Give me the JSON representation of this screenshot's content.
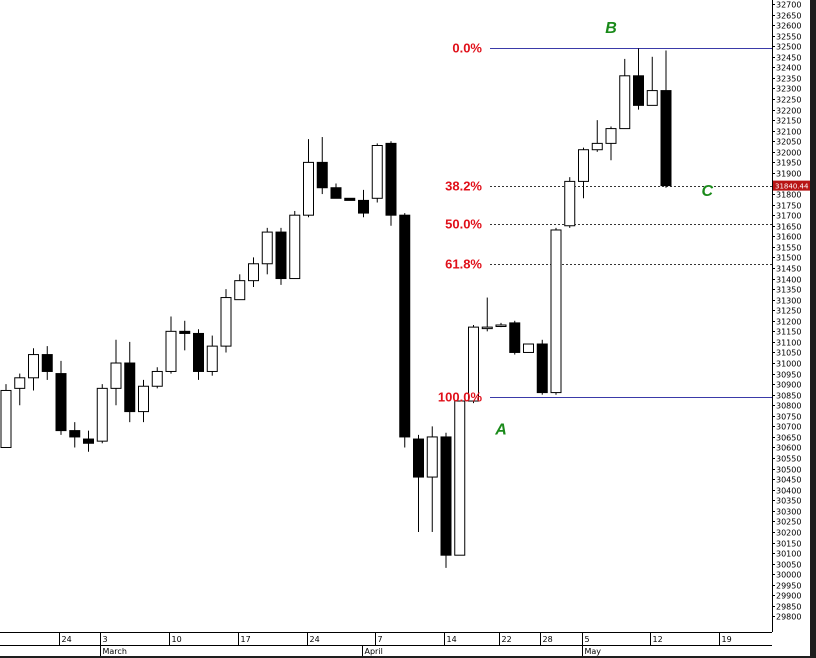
{
  "chart_data": {
    "type": "candlestick",
    "title": "",
    "xlabel": "",
    "ylabel": "",
    "ylim": [
      29750,
      32700
    ],
    "y_tick_step": 50,
    "grid": false,
    "colors": {
      "background": "#ffffff",
      "frame": "#1e1e1e",
      "up_fill": "#ffffff",
      "down_fill": "#000000",
      "fib_line": "#3a3aa8",
      "fib_label": "#e0101a",
      "point_label": "#1a8a1a",
      "price_tag": "#b81414"
    },
    "candles": [
      {
        "date": "Mar-19",
        "open": 30600,
        "high": 30900,
        "low": 30600,
        "close": 30870
      },
      {
        "date": "Mar-20",
        "open": 30880,
        "high": 30950,
        "low": 30800,
        "close": 30930
      },
      {
        "date": "Mar-21",
        "open": 30930,
        "high": 31070,
        "low": 30870,
        "close": 31040
      },
      {
        "date": "Mar-22",
        "open": 31040,
        "high": 31080,
        "low": 30920,
        "close": 30960
      },
      {
        "date": "Mar-23",
        "open": 30950,
        "high": 31010,
        "low": 30660,
        "close": 30680
      },
      {
        "date": "Mar-24",
        "open": 30680,
        "high": 30720,
        "low": 30600,
        "close": 30650
      },
      {
        "date": "Mar-25",
        "open": 30640,
        "high": 30680,
        "low": 30580,
        "close": 30620
      },
      {
        "date": "Mar-26",
        "open": 30630,
        "high": 30900,
        "low": 30620,
        "close": 30880
      },
      {
        "date": "Mar-27",
        "open": 30880,
        "high": 31110,
        "low": 30800,
        "close": 31000
      },
      {
        "date": "Mar-28",
        "open": 31000,
        "high": 31100,
        "low": 30720,
        "close": 30770
      },
      {
        "date": "Mar-29",
        "open": 30770,
        "high": 30920,
        "low": 30720,
        "close": 30890
      },
      {
        "date": "Mar-30",
        "open": 30890,
        "high": 30980,
        "low": 30880,
        "close": 30960
      },
      {
        "date": "Mar-31",
        "open": 30960,
        "high": 31220,
        "low": 30950,
        "close": 31150
      },
      {
        "date": "Apr-01",
        "open": 31150,
        "high": 31200,
        "low": 31060,
        "close": 31140
      },
      {
        "date": "Apr-02",
        "open": 31140,
        "high": 31160,
        "low": 30920,
        "close": 30960
      },
      {
        "date": "Apr-03",
        "open": 30960,
        "high": 31130,
        "low": 30940,
        "close": 31080
      },
      {
        "date": "Apr-04",
        "open": 31080,
        "high": 31350,
        "low": 31050,
        "close": 31310
      },
      {
        "date": "Apr-05",
        "open": 31300,
        "high": 31420,
        "low": 31300,
        "close": 31390
      },
      {
        "date": "Apr-06",
        "open": 31390,
        "high": 31500,
        "low": 31360,
        "close": 31470
      },
      {
        "date": "Apr-07",
        "open": 31470,
        "high": 31640,
        "low": 31420,
        "close": 31620
      },
      {
        "date": "Apr-08",
        "open": 31620,
        "high": 31640,
        "low": 31370,
        "close": 31400
      },
      {
        "date": "Apr-09",
        "open": 31400,
        "high": 31720,
        "low": 31400,
        "close": 31700
      },
      {
        "date": "Apr-10",
        "open": 31700,
        "high": 32060,
        "low": 31690,
        "close": 31950
      },
      {
        "date": "Apr-11",
        "open": 31950,
        "high": 32070,
        "low": 31800,
        "close": 31830
      },
      {
        "date": "Apr-12",
        "open": 31830,
        "high": 31850,
        "low": 31780,
        "close": 31780
      },
      {
        "date": "Apr-13",
        "open": 31780,
        "high": 31780,
        "low": 31770,
        "close": 31770
      },
      {
        "date": "Apr-14",
        "open": 31770,
        "high": 31820,
        "low": 31690,
        "close": 31710
      },
      {
        "date": "Apr-15",
        "open": 31780,
        "high": 32040,
        "low": 31760,
        "close": 32030
      },
      {
        "date": "Apr-16",
        "open": 32040,
        "high": 32050,
        "low": 31650,
        "close": 31700
      },
      {
        "date": "Apr-17",
        "open": 31700,
        "high": 31710,
        "low": 30600,
        "close": 30650
      },
      {
        "date": "Apr-18",
        "open": 30640,
        "high": 30660,
        "low": 30200,
        "close": 30460
      },
      {
        "date": "Apr-19",
        "open": 30460,
        "high": 30700,
        "low": 30200,
        "close": 30650
      },
      {
        "date": "Apr-20",
        "open": 30650,
        "high": 30670,
        "low": 30030,
        "close": 30090
      },
      {
        "date": "Apr-21",
        "open": 30090,
        "high": 30820,
        "low": 30090,
        "close": 30820
      },
      {
        "date": "Apr-22",
        "open": 30820,
        "high": 31180,
        "low": 30810,
        "close": 31170
      },
      {
        "date": "Apr-23",
        "open": 31170,
        "high": 31310,
        "low": 31150,
        "close": 31170
      },
      {
        "date": "Apr-24",
        "open": 31180,
        "high": 31190,
        "low": 31170,
        "close": 31180
      },
      {
        "date": "Apr-25",
        "open": 31190,
        "high": 31200,
        "low": 31040,
        "close": 31050
      },
      {
        "date": "Apr-26",
        "open": 31050,
        "high": 31090,
        "low": 31050,
        "close": 31090
      },
      {
        "date": "Apr-27",
        "open": 31090,
        "high": 31110,
        "low": 30850,
        "close": 30860
      },
      {
        "date": "Apr-28",
        "open": 30860,
        "high": 31640,
        "low": 30850,
        "close": 31630
      },
      {
        "date": "Apr-29",
        "open": 31650,
        "high": 31880,
        "low": 31640,
        "close": 31860
      },
      {
        "date": "Apr-30",
        "open": 31860,
        "high": 32020,
        "low": 31780,
        "close": 32010
      },
      {
        "date": "May-01",
        "open": 32010,
        "high": 32150,
        "low": 32000,
        "close": 32040
      },
      {
        "date": "May-02",
        "open": 32040,
        "high": 32120,
        "low": 31960,
        "close": 32110
      },
      {
        "date": "May-03",
        "open": 32110,
        "high": 32440,
        "low": 32110,
        "close": 32360
      },
      {
        "date": "May-04",
        "open": 32360,
        "high": 32490,
        "low": 32200,
        "close": 32220
      },
      {
        "date": "May-05",
        "open": 32220,
        "high": 32450,
        "low": 32220,
        "close": 32290
      },
      {
        "date": "May-06",
        "open": 32290,
        "high": 32480,
        "low": 31830,
        "close": 31840
      }
    ],
    "x_ticks": [
      {
        "label": "24",
        "index": 4
      },
      {
        "label": "3",
        "index": 7
      },
      {
        "label": "10",
        "index": 12
      },
      {
        "label": "17",
        "index": 17
      },
      {
        "label": "24",
        "index": 22
      },
      {
        "label": "7",
        "index": 27
      },
      {
        "label": "14",
        "index": 32
      },
      {
        "label": "22",
        "index": 36
      },
      {
        "label": "28",
        "index": 39
      },
      {
        "label": "5",
        "index": 42
      },
      {
        "label": "12",
        "index": 47
      },
      {
        "label": "19",
        "index": 52
      }
    ],
    "month_labels": [
      {
        "label": "March",
        "index": 7
      },
      {
        "label": "April",
        "index": 26
      },
      {
        "label": "May",
        "index": 42
      }
    ],
    "fib_levels": [
      {
        "label": "0.0%",
        "value": 32490,
        "style": "solid"
      },
      {
        "label": "38.2%",
        "value": 31840,
        "style": "dashed"
      },
      {
        "label": "50.0%",
        "value": 31660,
        "style": "dashed"
      },
      {
        "label": "61.8%",
        "value": 31470,
        "style": "dashed"
      },
      {
        "label": "100.0%",
        "value": 30840,
        "style": "solid"
      }
    ],
    "point_labels": [
      {
        "label": "B",
        "index": 44,
        "value": 32590
      },
      {
        "label": "C",
        "index": 51,
        "value": 31820
      },
      {
        "label": "A",
        "index": 36,
        "value": 30690
      }
    ],
    "price_tag": {
      "label": "31840.44",
      "value": 31840
    }
  }
}
